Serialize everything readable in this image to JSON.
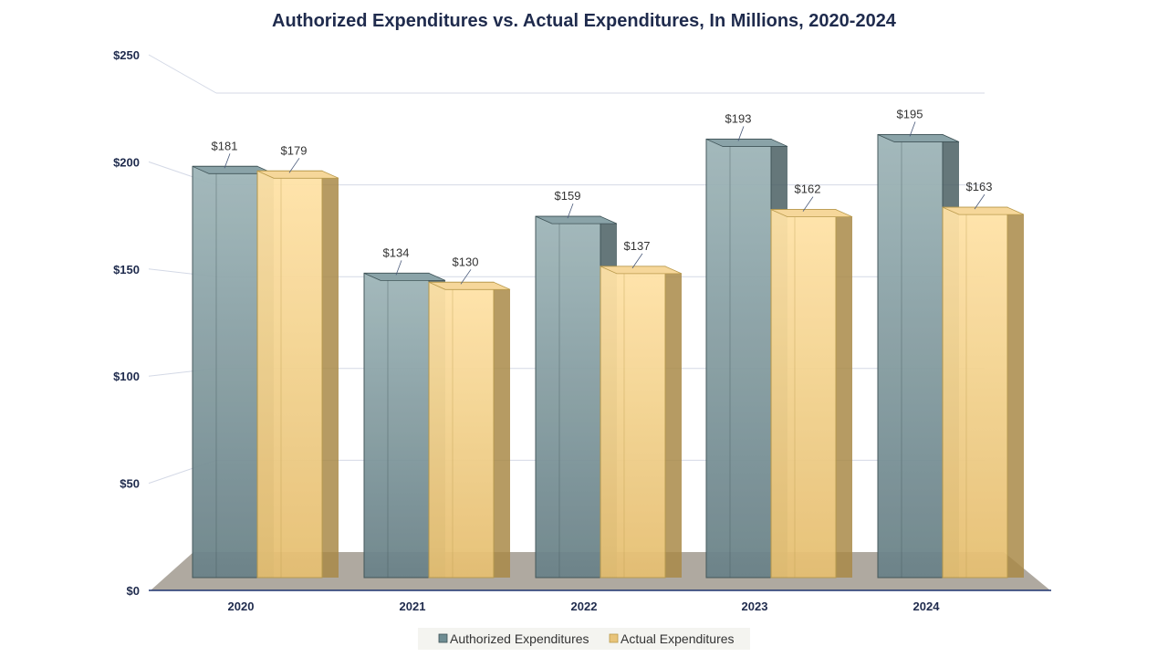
{
  "chart_data": {
    "type": "bar",
    "title": "Authorized Expenditures vs. Actual Expenditures, In Millions, 2020-2024",
    "categories": [
      "2020",
      "2021",
      "2022",
      "2023",
      "2024"
    ],
    "series": [
      {
        "name": "Authorized Expenditures",
        "values": [
          181,
          134,
          159,
          193,
          195
        ],
        "labels": [
          "$181",
          "$134",
          "$159",
          "$193",
          "$195"
        ],
        "color": "#6f8d93"
      },
      {
        "name": "Actual Expenditures",
        "values": [
          179,
          130,
          137,
          162,
          163
        ],
        "labels": [
          "$179",
          "$130",
          "$137",
          "$162",
          "$163"
        ],
        "color": "#e8c47a"
      }
    ],
    "yticks": [
      0,
      50,
      100,
      150,
      200,
      250
    ],
    "ytick_labels": [
      "$0",
      "$50",
      "$100",
      "$150",
      "$200",
      "$250"
    ],
    "ylim": [
      0,
      250
    ],
    "xlabel": "",
    "ylabel": "",
    "grid": true,
    "legend_position": "bottom-center"
  }
}
